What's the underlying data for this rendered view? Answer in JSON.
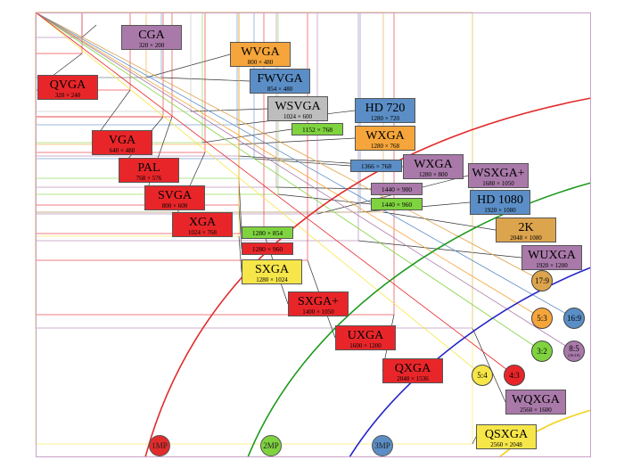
{
  "colors": {
    "red": "#e8262a",
    "orange": "#f5a53b",
    "blue": "#5b8ec6",
    "purple": "#a97aa9",
    "gray": "#bdbdbd",
    "green": "#7fd33f",
    "yellow": "#f7e64a",
    "tan": "#dda44e",
    "curve_1mp": "#e22b2b",
    "curve_2mp": "#1e9a1e",
    "curve_3mp": "#2525c8",
    "curve_5mp": "#f2d21a"
  },
  "resolutions": [
    {
      "name": "CGA",
      "res": "320 × 200",
      "color": "purple"
    },
    {
      "name": "QVGA",
      "res": "320 × 240",
      "color": "red"
    },
    {
      "name": "WVGA",
      "res": "800 × 480",
      "color": "orange"
    },
    {
      "name": "FWVGA",
      "res": "854 × 480",
      "color": "blue"
    },
    {
      "name": "WSVGA",
      "res": "1024 × 600",
      "color": "gray"
    },
    {
      "name": "",
      "res": "1152 × 768",
      "color": "green"
    },
    {
      "name": "HD 720",
      "res": "1280 × 720",
      "color": "blue"
    },
    {
      "name": "VGA",
      "res": "640 × 480",
      "color": "red"
    },
    {
      "name": "WXGA",
      "res": "1280 × 768",
      "color": "orange"
    },
    {
      "name": "PAL",
      "res": "768 × 576",
      "color": "red"
    },
    {
      "name": "",
      "res": "1366 × 768",
      "color": "blue"
    },
    {
      "name": "WXGA",
      "res": "1280 × 800",
      "color": "purple"
    },
    {
      "name": "WSXGA+",
      "res": "1680 × 1050",
      "color": "purple"
    },
    {
      "name": "SVGA",
      "res": "800 × 600",
      "color": "red"
    },
    {
      "name": "",
      "res": "1440 × 900",
      "color": "purple"
    },
    {
      "name": "",
      "res": "1440 × 960",
      "color": "green"
    },
    {
      "name": "HD 1080",
      "res": "1920 × 1080",
      "color": "blue"
    },
    {
      "name": "XGA",
      "res": "1024 × 768",
      "color": "red"
    },
    {
      "name": "2K",
      "res": "2048 × 1080",
      "color": "tan"
    },
    {
      "name": "",
      "res": "1280 × 854",
      "color": "green"
    },
    {
      "name": "",
      "res": "1280 × 960",
      "color": "red"
    },
    {
      "name": "WUXGA",
      "res": "1920 × 1200",
      "color": "purple"
    },
    {
      "name": "SXGA",
      "res": "1280 × 1024",
      "color": "yellow"
    },
    {
      "name": "SXGA+",
      "res": "1400 × 1050",
      "color": "red"
    },
    {
      "name": "UXGA",
      "res": "1600 × 1200",
      "color": "red"
    },
    {
      "name": "QXGA",
      "res": "2048 × 1536",
      "color": "red"
    },
    {
      "name": "WQXGA",
      "res": "2560 × 1600",
      "color": "purple"
    },
    {
      "name": "QSXGA",
      "res": "2560 × 2048",
      "color": "yellow"
    }
  ],
  "ratio_badges": [
    {
      "label": "17:9",
      "sub": "",
      "color": "tan"
    },
    {
      "label": "5:3",
      "sub": "",
      "color": "orange"
    },
    {
      "label": "16:9",
      "sub": "",
      "color": "blue"
    },
    {
      "label": "3:2",
      "sub": "",
      "color": "green"
    },
    {
      "label": "8:5",
      "sub": "(16:10)",
      "color": "purple"
    },
    {
      "label": "5:4",
      "sub": "",
      "color": "yellow"
    },
    {
      "label": "4:3",
      "sub": "",
      "color": "red"
    }
  ],
  "megapixel_markers": [
    {
      "label": "1MP",
      "color": "#e22b2b"
    },
    {
      "label": "2MP",
      "color": "#7fd33f"
    },
    {
      "label": "3MP",
      "color": "#5b8ec6"
    }
  ]
}
